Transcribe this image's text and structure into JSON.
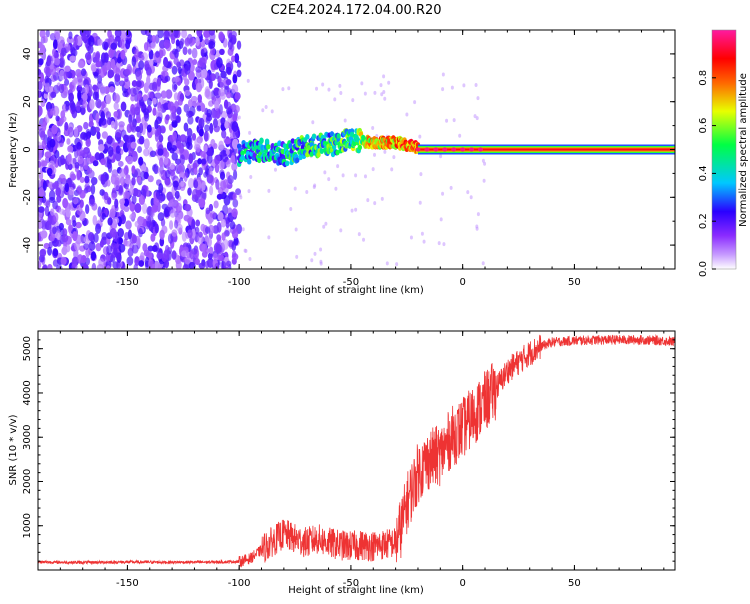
{
  "page_title": "C2E4.2024.172.04.00.R20",
  "chart_data": [
    {
      "type": "heatmap",
      "xlabel": "Height of straight line (km)",
      "ylabel": "Frequency (Hz)",
      "xlim": [
        -190,
        95
      ],
      "ylim": [
        -50,
        50
      ],
      "x_ticks": [
        -150,
        -100,
        -50,
        0,
        50
      ],
      "y_ticks": [
        -40,
        -20,
        0,
        20,
        40
      ],
      "grid": false,
      "colorbar": {
        "label": "Normalized spectral amplitude",
        "ticks": [
          0.0,
          0.2,
          0.4,
          0.6,
          0.8
        ],
        "range": [
          0,
          1
        ],
        "colormap": [
          "#ffffff",
          "#9a4dff",
          "#3300ff",
          "#00c8ff",
          "#00ff44",
          "#e8ff00",
          "#ff6600",
          "#ff0000",
          "#ff1aa0"
        ]
      },
      "features": {
        "noise_region_x": [
          -190,
          -100
        ],
        "noise_amplitude": 0.2,
        "carrier_trace": [
          {
            "x": -100,
            "y": -2,
            "amp": 0.35
          },
          {
            "x": -90,
            "y": 0,
            "amp": 0.4
          },
          {
            "x": -80,
            "y": -2,
            "amp": 0.4
          },
          {
            "x": -70,
            "y": 1,
            "amp": 0.45
          },
          {
            "x": -60,
            "y": 2,
            "amp": 0.45
          },
          {
            "x": -50,
            "y": 4,
            "amp": 0.5
          },
          {
            "x": -40,
            "y": 3,
            "amp": 0.7
          },
          {
            "x": -30,
            "y": 3,
            "amp": 0.75
          },
          {
            "x": -20,
            "y": 1,
            "amp": 0.8
          },
          {
            "x": -10,
            "y": 0,
            "amp": 0.85
          },
          {
            "x": 0,
            "y": 0,
            "amp": 0.85
          },
          {
            "x": 10,
            "y": 0,
            "amp": 0.9
          },
          {
            "x": 95,
            "y": 0,
            "amp": 0.95
          }
        ]
      }
    },
    {
      "type": "line",
      "xlabel": "Height of straight line (km)",
      "ylabel": "SNR (10 * v/v)",
      "xlim": [
        -190,
        95
      ],
      "ylim": [
        0,
        5400
      ],
      "x_ticks": [
        -150,
        -100,
        -50,
        0,
        50
      ],
      "y_ticks": [
        1000,
        2000,
        3000,
        4000,
        5000
      ],
      "grid": false,
      "series": [
        {
          "color": "#ee3333",
          "x": [
            -190,
            -170,
            -150,
            -130,
            -110,
            -100,
            -95,
            -90,
            -85,
            -80,
            -75,
            -70,
            -65,
            -60,
            -55,
            -50,
            -45,
            -40,
            -35,
            -30,
            -27,
            -25,
            -20,
            -15,
            -10,
            -5,
            0,
            5,
            10,
            15,
            20,
            25,
            30,
            35,
            40,
            50,
            60,
            70,
            80,
            90,
            95
          ],
          "y": [
            180,
            170,
            180,
            175,
            180,
            190,
            260,
            450,
            650,
            820,
            700,
            620,
            700,
            620,
            560,
            540,
            560,
            540,
            580,
            620,
            1050,
            1500,
            2200,
            2500,
            2600,
            3000,
            3200,
            3500,
            3800,
            4100,
            4500,
            4700,
            4900,
            5050,
            5150,
            5180,
            5200,
            5200,
            5200,
            5180,
            5150
          ]
        }
      ]
    }
  ]
}
